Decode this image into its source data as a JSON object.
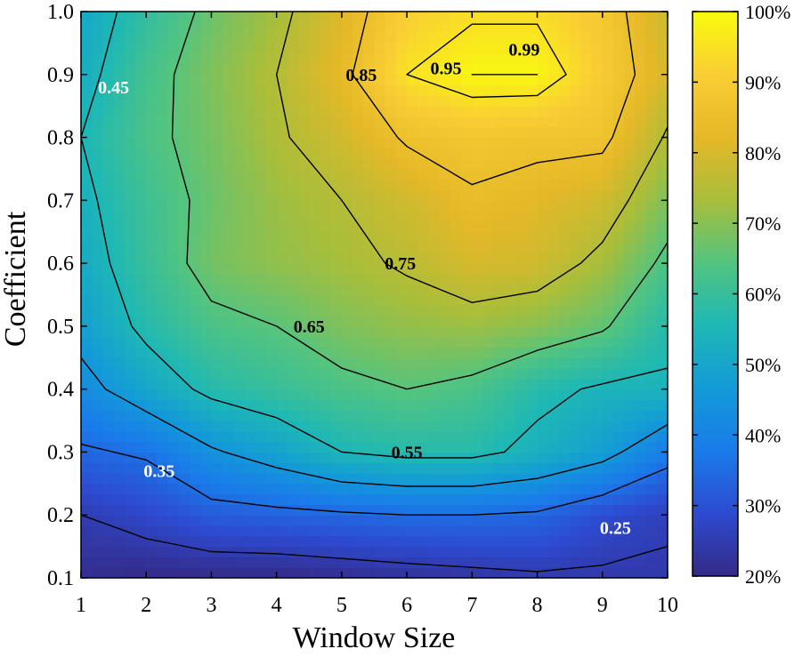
{
  "chart_data": {
    "type": "heatmap",
    "title": "",
    "xlabel": "Window Size",
    "ylabel": "Coefficient",
    "xlim": [
      1,
      10
    ],
    "ylim": [
      0.1,
      1.0
    ],
    "x": [
      1,
      2,
      3,
      4,
      5,
      6,
      7,
      8,
      9,
      10
    ],
    "y": [
      0.1,
      0.2,
      0.3,
      0.4,
      0.5,
      0.6,
      0.7,
      0.8,
      0.9,
      1.0
    ],
    "x_tick_labels": [
      "1",
      "2",
      "3",
      "4",
      "5",
      "6",
      "7",
      "8",
      "9",
      "10"
    ],
    "y_tick_labels": [
      "0.1",
      "0.2",
      "0.3",
      "0.4",
      "0.5",
      "0.6",
      "0.7",
      "0.8",
      "0.9",
      "1.0"
    ],
    "z": [
      [
        0.21,
        0.2,
        0.2,
        0.2,
        0.21,
        0.22,
        0.23,
        0.24,
        0.24,
        0.24
      ],
      [
        0.25,
        0.28,
        0.32,
        0.33,
        0.34,
        0.35,
        0.35,
        0.34,
        0.29,
        0.26
      ],
      [
        0.34,
        0.36,
        0.44,
        0.49,
        0.55,
        0.57,
        0.57,
        0.53,
        0.48,
        0.38
      ],
      [
        0.42,
        0.5,
        0.57,
        0.6,
        0.63,
        0.65,
        0.63,
        0.57,
        0.54,
        0.54
      ],
      [
        0.48,
        0.57,
        0.63,
        0.65,
        0.69,
        0.71,
        0.72,
        0.7,
        0.66,
        0.57
      ],
      [
        0.51,
        0.6,
        0.68,
        0.71,
        0.73,
        0.76,
        0.8,
        0.79,
        0.73,
        0.63
      ],
      [
        0.53,
        0.61,
        0.67,
        0.72,
        0.75,
        0.79,
        0.84,
        0.82,
        0.79,
        0.69
      ],
      [
        0.55,
        0.63,
        0.68,
        0.74,
        0.79,
        0.86,
        0.88,
        0.87,
        0.87,
        0.74
      ],
      [
        0.52,
        0.62,
        0.69,
        0.75,
        0.83,
        0.95,
        0.99,
        0.99,
        0.9,
        0.8
      ],
      [
        0.5,
        0.59,
        0.67,
        0.73,
        0.81,
        0.91,
        0.94,
        0.94,
        0.89,
        0.78
      ]
    ],
    "contour_levels": [
      0.25,
      0.35,
      0.45,
      0.55,
      0.65,
      0.75,
      0.85,
      0.95,
      0.99
    ],
    "contour_labels": [
      {
        "text": "0.99",
        "x": 7.8,
        "y": 0.94,
        "color": "#000000"
      },
      {
        "text": "0.95",
        "x": 6.6,
        "y": 0.91,
        "color": "#000000"
      },
      {
        "text": "0.85",
        "x": 5.3,
        "y": 0.9,
        "color": "#000000"
      },
      {
        "text": "0.75",
        "x": 5.9,
        "y": 0.6,
        "color": "#000000"
      },
      {
        "text": "0.65",
        "x": 4.5,
        "y": 0.5,
        "color": "#000000"
      },
      {
        "text": "0.55",
        "x": 6.0,
        "y": 0.3,
        "color": "#000000"
      },
      {
        "text": "0.45",
        "x": 1.5,
        "y": 0.88,
        "color": "#ffffff"
      },
      {
        "text": "0.35",
        "x": 2.2,
        "y": 0.27,
        "color": "#ffffff"
      },
      {
        "text": "0.25",
        "x": 9.2,
        "y": 0.18,
        "color": "#ffffff"
      }
    ],
    "colorbar": {
      "min": 0.2,
      "max": 1.0,
      "tick_labels": [
        "20%",
        "30%",
        "40%",
        "50%",
        "60%",
        "70%",
        "80%",
        "90%",
        "100%"
      ],
      "tick_values": [
        0.2,
        0.3,
        0.4,
        0.5,
        0.6,
        0.7,
        0.8,
        0.9,
        1.0
      ]
    },
    "colormap": [
      "#352a87",
      "#2d4bd1",
      "#1a7bea",
      "#139bd7",
      "#1eb8b5",
      "#53c47f",
      "#a9be3a",
      "#e5b828",
      "#f9ce34",
      "#f9fb0e"
    ],
    "grid": false
  }
}
